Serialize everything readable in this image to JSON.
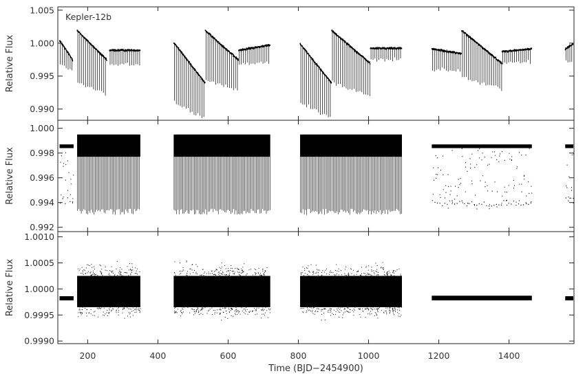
{
  "chart_data": {
    "type": "scatter",
    "star_label": "Kepler-12b",
    "xlabel": "Time (BJD−2454900)",
    "xlim": [
      115,
      1585
    ],
    "xticks": [
      200,
      400,
      600,
      800,
      1000,
      1200,
      1400
    ],
    "xtick_labels": [
      "200",
      "400",
      "600",
      "800",
      "1000",
      "1200",
      "1400"
    ],
    "panels": [
      {
        "ylabel": "Relative Flux",
        "ylim": [
          0.9883,
          1.0055
        ],
        "yticks": [
          0.99,
          0.995,
          1.0,
          1.005
        ],
        "ytick_labels": [
          "0.990",
          "0.995",
          "1.000",
          "1.005"
        ],
        "segments": [
          {
            "x": [
              120,
              158
            ],
            "baseline": [
              1.0005,
              0.9975
            ],
            "transit_floor": 0.997
          },
          {
            "x": [
              170,
              255
            ],
            "baseline": [
              1.002,
              0.9975
            ],
            "transit_floor": 0.994
          },
          {
            "x": [
              262,
              350
            ],
            "baseline": [
              0.999,
              0.999
            ],
            "transit_floor": 0.9968
          },
          {
            "x": [
              445,
              535
            ],
            "baseline": [
              1.0002,
              0.994
            ],
            "transit_floor": 0.991
          },
          {
            "x": [
              535,
              630
            ],
            "baseline": [
              1.002,
              0.9975
            ],
            "transit_floor": 0.9945
          },
          {
            "x": [
              630,
              720
            ],
            "baseline": [
              0.999,
              0.9998
            ],
            "transit_floor": 0.9968
          },
          {
            "x": [
              805,
              895
            ],
            "baseline": [
              1.0,
              0.994
            ],
            "transit_floor": 0.991
          },
          {
            "x": [
              895,
              1005
            ],
            "baseline": [
              1.002,
              0.997
            ],
            "transit_floor": 0.994
          },
          {
            "x": [
              1005,
              1095
            ],
            "baseline": [
              0.9993,
              0.9993
            ],
            "transit_floor": 0.9975
          },
          {
            "x": [
              1180,
              1265
            ],
            "baseline": [
              0.9992,
              0.9985
            ],
            "transit_floor": 0.996
          },
          {
            "x": [
              1265,
              1380
            ],
            "baseline": [
              1.002,
              0.997
            ],
            "transit_floor": 0.995
          },
          {
            "x": [
              1380,
              1465
            ],
            "baseline": [
              0.9988,
              0.9992
            ],
            "transit_floor": 0.997
          },
          {
            "x": [
              1560,
              1583
            ],
            "baseline": [
              0.9992,
              1.0
            ],
            "transit_floor": 0.997
          }
        ]
      },
      {
        "ylabel": "Relative Flux",
        "ylim": [
          0.99165,
          1.00065
        ],
        "yticks": [
          0.992,
          0.994,
          0.996,
          0.998,
          1.0
        ],
        "ytick_labels": [
          "0.992",
          "0.994",
          "0.996",
          "0.998",
          "1.000"
        ],
        "segments": [
          {
            "x": [
              120,
              160
            ],
            "band": [
              0.9984,
              0.9987
            ],
            "transit_floor": 0.9935,
            "sparse": true
          },
          {
            "x": [
              170,
              350
            ],
            "band": [
              0.9977,
              0.9995
            ],
            "transit_floor": 0.993,
            "sparse": false
          },
          {
            "x": [
              445,
              720
            ],
            "band": [
              0.9977,
              0.9995
            ],
            "transit_floor": 0.993,
            "sparse": false
          },
          {
            "x": [
              805,
              1095
            ],
            "band": [
              0.9977,
              0.9995
            ],
            "transit_floor": 0.993,
            "sparse": false
          },
          {
            "x": [
              1180,
              1465
            ],
            "band": [
              0.9984,
              0.9987
            ],
            "transit_floor": 0.9933,
            "sparse": true
          },
          {
            "x": [
              1560,
              1583
            ],
            "band": [
              0.9984,
              0.9987
            ],
            "transit_floor": 0.9935,
            "sparse": true
          }
        ]
      },
      {
        "ylabel": "Relative Flux",
        "ylim": [
          0.99895,
          1.0011
        ],
        "yticks": [
          0.999,
          0.9995,
          1.0,
          1.0005,
          1.001
        ],
        "ytick_labels": [
          "0.9990",
          "0.9995",
          "1.0000",
          "1.0005",
          "1.0010"
        ],
        "segments": [
          {
            "x": [
              120,
              160
            ],
            "band": [
              0.99978,
              0.99986
            ],
            "outliers": false
          },
          {
            "x": [
              170,
              350
            ],
            "band": [
              0.99965,
              1.00025
            ],
            "outliers": true
          },
          {
            "x": [
              445,
              720
            ],
            "band": [
              0.99965,
              1.00025
            ],
            "outliers": true
          },
          {
            "x": [
              805,
              1095
            ],
            "band": [
              0.99965,
              1.00025
            ],
            "outliers": true
          },
          {
            "x": [
              1180,
              1465
            ],
            "band": [
              0.99978,
              0.99987
            ],
            "outliers": false
          },
          {
            "x": [
              1560,
              1583
            ],
            "band": [
              0.99978,
              0.99986
            ],
            "outliers": false
          }
        ]
      }
    ]
  }
}
